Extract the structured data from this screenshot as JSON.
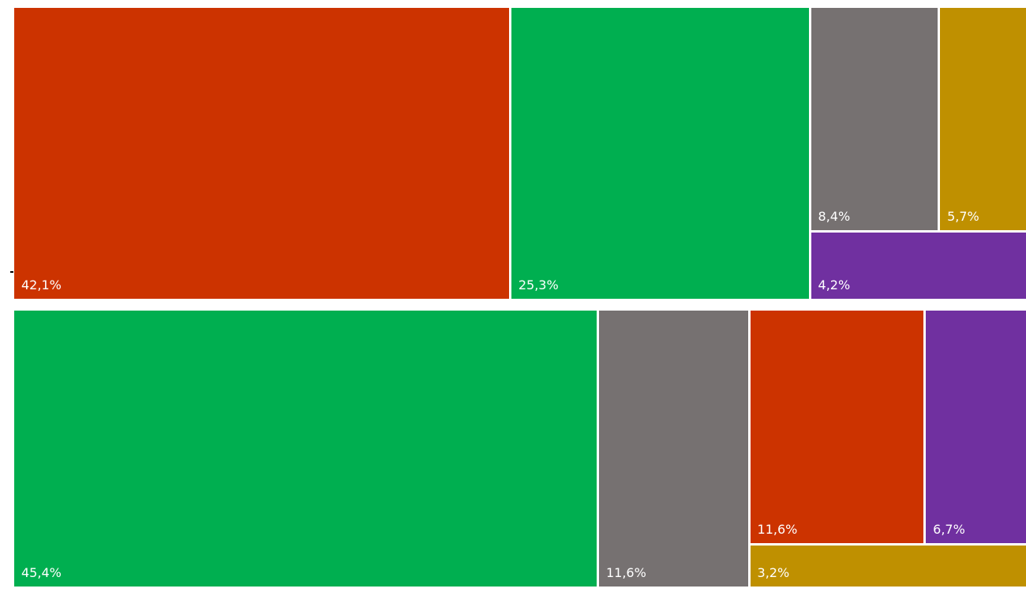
{
  "chart_data": [
    {
      "type": "treemap",
      "title": "",
      "tiles": [
        {
          "label": "42,1%",
          "value": 42.1,
          "color": "#CC3300"
        },
        {
          "label": "25,3%",
          "value": 25.3,
          "color": "#00AF50"
        },
        {
          "label": "8,4%",
          "value": 8.4,
          "color": "#767171"
        },
        {
          "label": "5,7%",
          "value": 5.7,
          "color": "#BF9000"
        },
        {
          "label": "4,2%",
          "value": 4.2,
          "color": "#7030A0"
        }
      ]
    },
    {
      "type": "treemap",
      "title": "",
      "tiles": [
        {
          "label": "45,4%",
          "value": 45.4,
          "color": "#00AF50"
        },
        {
          "label": "11,6%",
          "value": 11.6,
          "color": "#767171"
        },
        {
          "label": "11,6%",
          "value": 11.6,
          "color": "#CC3300"
        },
        {
          "label": "6,7%",
          "value": 6.7,
          "color": "#7030A0"
        },
        {
          "label": "3,2%",
          "value": 3.2,
          "color": "#BF9000"
        }
      ]
    }
  ]
}
